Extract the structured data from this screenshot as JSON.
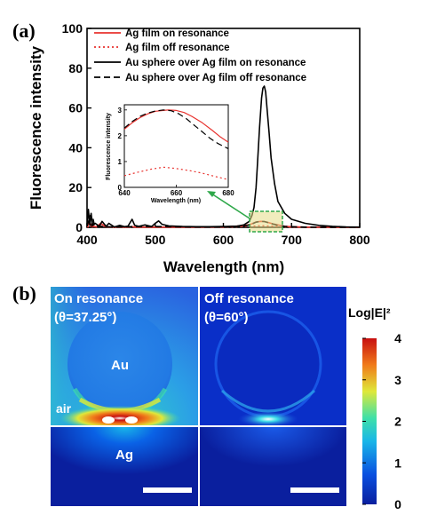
{
  "panel_a": {
    "label": "(a)",
    "chart_data": {
      "type": "line",
      "xlabel": "Wavelength (nm)",
      "ylabel": "Fluorescence intensity",
      "xlim": [
        400,
        800
      ],
      "ylim": [
        0,
        100
      ],
      "xticks": [
        400,
        500,
        600,
        700,
        800
      ],
      "yticks": [
        0,
        20,
        40,
        60,
        80,
        100
      ],
      "legend_position": "top-right",
      "series": [
        {
          "name": "Ag film on resonance",
          "color": "#e8322e",
          "style": "solid",
          "x": [
            400,
            404,
            406,
            408,
            410,
            414,
            420,
            425,
            430,
            440,
            445,
            450,
            460,
            466,
            470,
            480,
            500,
            520,
            560,
            600,
            630,
            640,
            648,
            655,
            660,
            665,
            672,
            680,
            690,
            700,
            720,
            760,
            800
          ],
          "y": [
            0.5,
            2.5,
            0.3,
            1.8,
            0.4,
            0.2,
            2.0,
            0.8,
            0.2,
            0.1,
            0.1,
            0.1,
            0.1,
            0.4,
            0.1,
            0.1,
            0.1,
            0.1,
            0.1,
            0.2,
            0.8,
            1.5,
            2.7,
            3.0,
            2.9,
            2.5,
            1.8,
            1.2,
            0.5,
            0.3,
            0.1,
            0.0,
            0.0
          ]
        },
        {
          "name": "Ag film off resonance",
          "color": "#e8322e",
          "style": "dotted",
          "x": [
            400,
            420,
            423,
            426,
            440,
            500,
            600,
            640,
            655,
            670,
            680,
            700,
            800
          ],
          "y": [
            0.3,
            0.3,
            1.5,
            0.3,
            0.2,
            0.1,
            0.1,
            0.5,
            0.8,
            0.6,
            0.4,
            0.1,
            0.0
          ]
        },
        {
          "name": "Au sphere over Ag film on resonance",
          "color": "#000000",
          "style": "solid",
          "x": [
            400,
            402,
            404,
            406,
            408,
            412,
            418,
            422,
            428,
            432,
            440,
            448,
            455,
            460,
            466,
            470,
            476,
            485,
            495,
            500,
            505,
            510,
            520,
            540,
            560,
            580,
            600,
            620,
            630,
            638,
            642,
            645,
            648,
            650,
            653,
            656,
            658,
            660,
            662,
            664,
            667,
            670,
            675,
            680,
            690,
            700,
            720,
            740,
            760,
            780,
            800
          ],
          "y": [
            1,
            9,
            1,
            7,
            1,
            2,
            0.5,
            3,
            0.5,
            2,
            0.2,
            1,
            0.3,
            0.6,
            4,
            1,
            0.5,
            1.2,
            0.4,
            2.0,
            3.2,
            1.5,
            0.7,
            0.4,
            0.3,
            0.3,
            0.4,
            0.6,
            1.2,
            3,
            6,
            10,
            20,
            32,
            50,
            65,
            70,
            71,
            68,
            60,
            48,
            35,
            22,
            13,
            7,
            4,
            2,
            1,
            0.5,
            0.2,
            0.1
          ]
        },
        {
          "name": "Au sphere over Ag film off resonance",
          "color": "#000000",
          "style": "dashed",
          "x": [
            400,
            405,
            407,
            409,
            411,
            418,
            440,
            460,
            500,
            560,
            600,
            630,
            640,
            648,
            655,
            660,
            665,
            672,
            680,
            690,
            700,
            720,
            760,
            800
          ],
          "y": [
            0.5,
            6,
            0.5,
            4,
            0.5,
            0.4,
            0.2,
            0.3,
            0.4,
            0.2,
            0.2,
            0.6,
            1.4,
            2.6,
            3.0,
            2.9,
            2.4,
            1.7,
            1.0,
            0.5,
            0.3,
            0.1,
            0.0,
            0.0
          ]
        }
      ],
      "inset": {
        "xlabel": "Wavelength (nm)",
        "ylabel": "Fluorescence intensity",
        "xlim": [
          640,
          680
        ],
        "ylim": [
          0,
          3.2
        ],
        "xticks": [
          640,
          660,
          680
        ],
        "yticks": [
          0,
          1,
          2,
          3
        ],
        "series": [
          {
            "color": "#e8322e",
            "style": "solid",
            "x": [
              640,
              643,
              646,
              649,
              652,
              655,
              657,
              660,
              663,
              666,
              670,
              674,
              677,
              680
            ],
            "y": [
              2.25,
              2.5,
              2.7,
              2.85,
              2.95,
              2.98,
              3.0,
              2.98,
              2.9,
              2.75,
              2.5,
              2.2,
              1.95,
              1.75
            ]
          },
          {
            "color": "#e8322e",
            "style": "dotted",
            "x": [
              640,
              645,
              650,
              655,
              660,
              665,
              670,
              675,
              680
            ],
            "y": [
              0.45,
              0.58,
              0.7,
              0.78,
              0.73,
              0.65,
              0.55,
              0.42,
              0.3
            ]
          },
          {
            "color": "#000000",
            "style": "dashed",
            "x": [
              640,
              643,
              646,
              649,
              652,
              655,
              658,
              661,
              664,
              667,
              670,
              673,
              676,
              680
            ],
            "y": [
              2.3,
              2.55,
              2.75,
              2.88,
              2.96,
              3.0,
              2.97,
              2.85,
              2.65,
              2.4,
              2.15,
              1.9,
              1.7,
              1.5
            ]
          }
        ]
      }
    }
  },
  "panel_b": {
    "label": "(b)",
    "left_title_line1": "On resonance",
    "left_title_line2": "(θ=37.25°)",
    "right_title_line1": "Off resonance",
    "right_title_line2": "(θ=60°)",
    "sphere_label": "Au",
    "air_label": "air",
    "substrate_label": "Ag",
    "colorbar": {
      "title": "Log|E|²",
      "ticks": [
        0,
        1,
        2,
        3,
        4
      ],
      "range": [
        0,
        4
      ],
      "colors": [
        "#0a1f9e",
        "#0a50e0",
        "#19b6e8",
        "#3fe0a8",
        "#dfe83a",
        "#f07a1a",
        "#c81010"
      ]
    }
  }
}
